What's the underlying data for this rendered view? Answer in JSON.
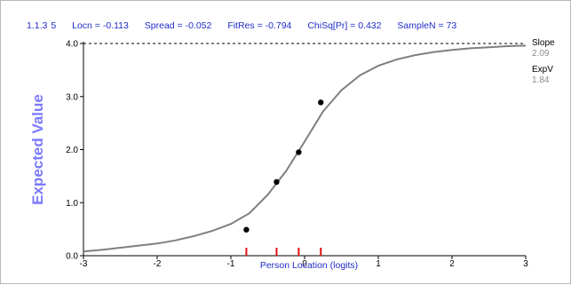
{
  "header": {
    "item": "1.1.3",
    "index": "5",
    "locn": "Locn = -0.113",
    "spread": "Spread = -0.052",
    "fitres": "FitRes = -0.794",
    "chisq": "ChiSq[Pr] = 0.432",
    "samplen": "SampleN = 73"
  },
  "side_panel": {
    "slope_label": "Slope",
    "slope_value": "2.09",
    "expv_label": "ExpV",
    "expv_value": "1.84"
  },
  "colors": {
    "curve": "#7f7f7f",
    "points": "#000000",
    "markers": "#e01010",
    "header_text": "#1f2cc7",
    "ylabel": "#7a7aff",
    "dashed_line": "#000000"
  },
  "chart_data": {
    "type": "line",
    "xlabel": "Person Location (logits)",
    "ylabel": "Expected Value",
    "xlim": [
      -3,
      3
    ],
    "ylim": [
      0,
      4
    ],
    "x_ticks": [
      "-3",
      "-2",
      "-1",
      "0",
      "1",
      "2",
      "3"
    ],
    "y_ticks": [
      "0.0",
      "1.0",
      "2.0",
      "3.0",
      "4.0"
    ],
    "max_line": 4.0,
    "curve": {
      "x": [
        -3.0,
        -2.75,
        -2.5,
        -2.25,
        -2.0,
        -1.75,
        -1.5,
        -1.25,
        -1.0,
        -0.75,
        -0.5,
        -0.25,
        0.0,
        0.25,
        0.5,
        0.75,
        1.0,
        1.25,
        1.5,
        1.75,
        2.0,
        2.25,
        2.5,
        2.75,
        3.0
      ],
      "y": [
        0.08,
        0.11,
        0.15,
        0.19,
        0.23,
        0.29,
        0.37,
        0.47,
        0.6,
        0.8,
        1.15,
        1.6,
        2.15,
        2.72,
        3.12,
        3.4,
        3.58,
        3.7,
        3.78,
        3.84,
        3.88,
        3.91,
        3.93,
        3.95,
        3.96
      ]
    },
    "points": {
      "x": [
        -0.79,
        -0.38,
        -0.08,
        0.22
      ],
      "y": [
        0.49,
        1.39,
        1.95,
        2.89
      ]
    },
    "group_markers_x": [
      -0.79,
      -0.38,
      -0.08,
      0.22
    ]
  }
}
